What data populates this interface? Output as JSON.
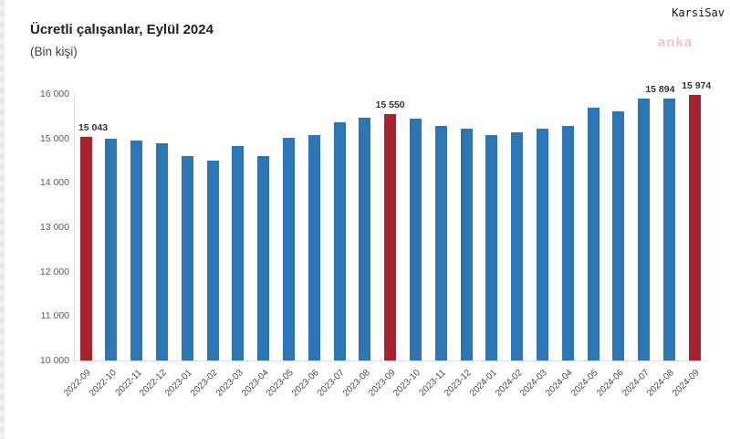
{
  "page": {
    "site_mark": "KarsiSav",
    "agency_watermark": "anka"
  },
  "header": {
    "title": "Ücretli çalışanlar, Eylül 2024",
    "subtitle": "(Bin kişi)"
  },
  "chart_data": {
    "type": "bar",
    "title": "Ücretli çalışanlar, Eylül 2024",
    "subtitle": "(Bin kişi)",
    "xlabel": "",
    "ylabel": "",
    "ylim": [
      10000,
      16000
    ],
    "ytick_step": 1000,
    "ytick_labels": [
      "10 000",
      "11 000",
      "12 000",
      "13 000",
      "14 000",
      "15 000",
      "16 000"
    ],
    "grid": false,
    "legend": false,
    "categories": [
      "2022-09",
      "2022-10",
      "2022-11",
      "2022-12",
      "2023-01",
      "2023-02",
      "2023-03",
      "2023-04",
      "2023-05",
      "2023-06",
      "2023-07",
      "2023-08",
      "2023-09",
      "2023-10",
      "2023-11",
      "2023-12",
      "2024-01",
      "2024-02",
      "2024-03",
      "2024-04",
      "2024-05",
      "2024-06",
      "2024-07",
      "2024-08",
      "2024-09"
    ],
    "values": [
      15043,
      15000,
      14945,
      14900,
      14610,
      14500,
      14830,
      14610,
      15020,
      15080,
      15360,
      15470,
      15550,
      15440,
      15290,
      15225,
      15080,
      15135,
      15225,
      15290,
      15700,
      15605,
      15905,
      15894,
      15974
    ],
    "highlighted_indices": [
      0,
      12,
      24
    ],
    "data_labels": [
      {
        "index": 0,
        "text": "15 043"
      },
      {
        "index": 12,
        "text": "15 550"
      },
      {
        "index": 23,
        "text": "15 894"
      },
      {
        "index": 24,
        "text": "15 974"
      }
    ],
    "colors": {
      "bar": "#2e75b6",
      "highlight": "#a8222d",
      "axis_line": "#d9d9d9",
      "tick_text": "#595959",
      "value_label_text": "#333333"
    }
  }
}
